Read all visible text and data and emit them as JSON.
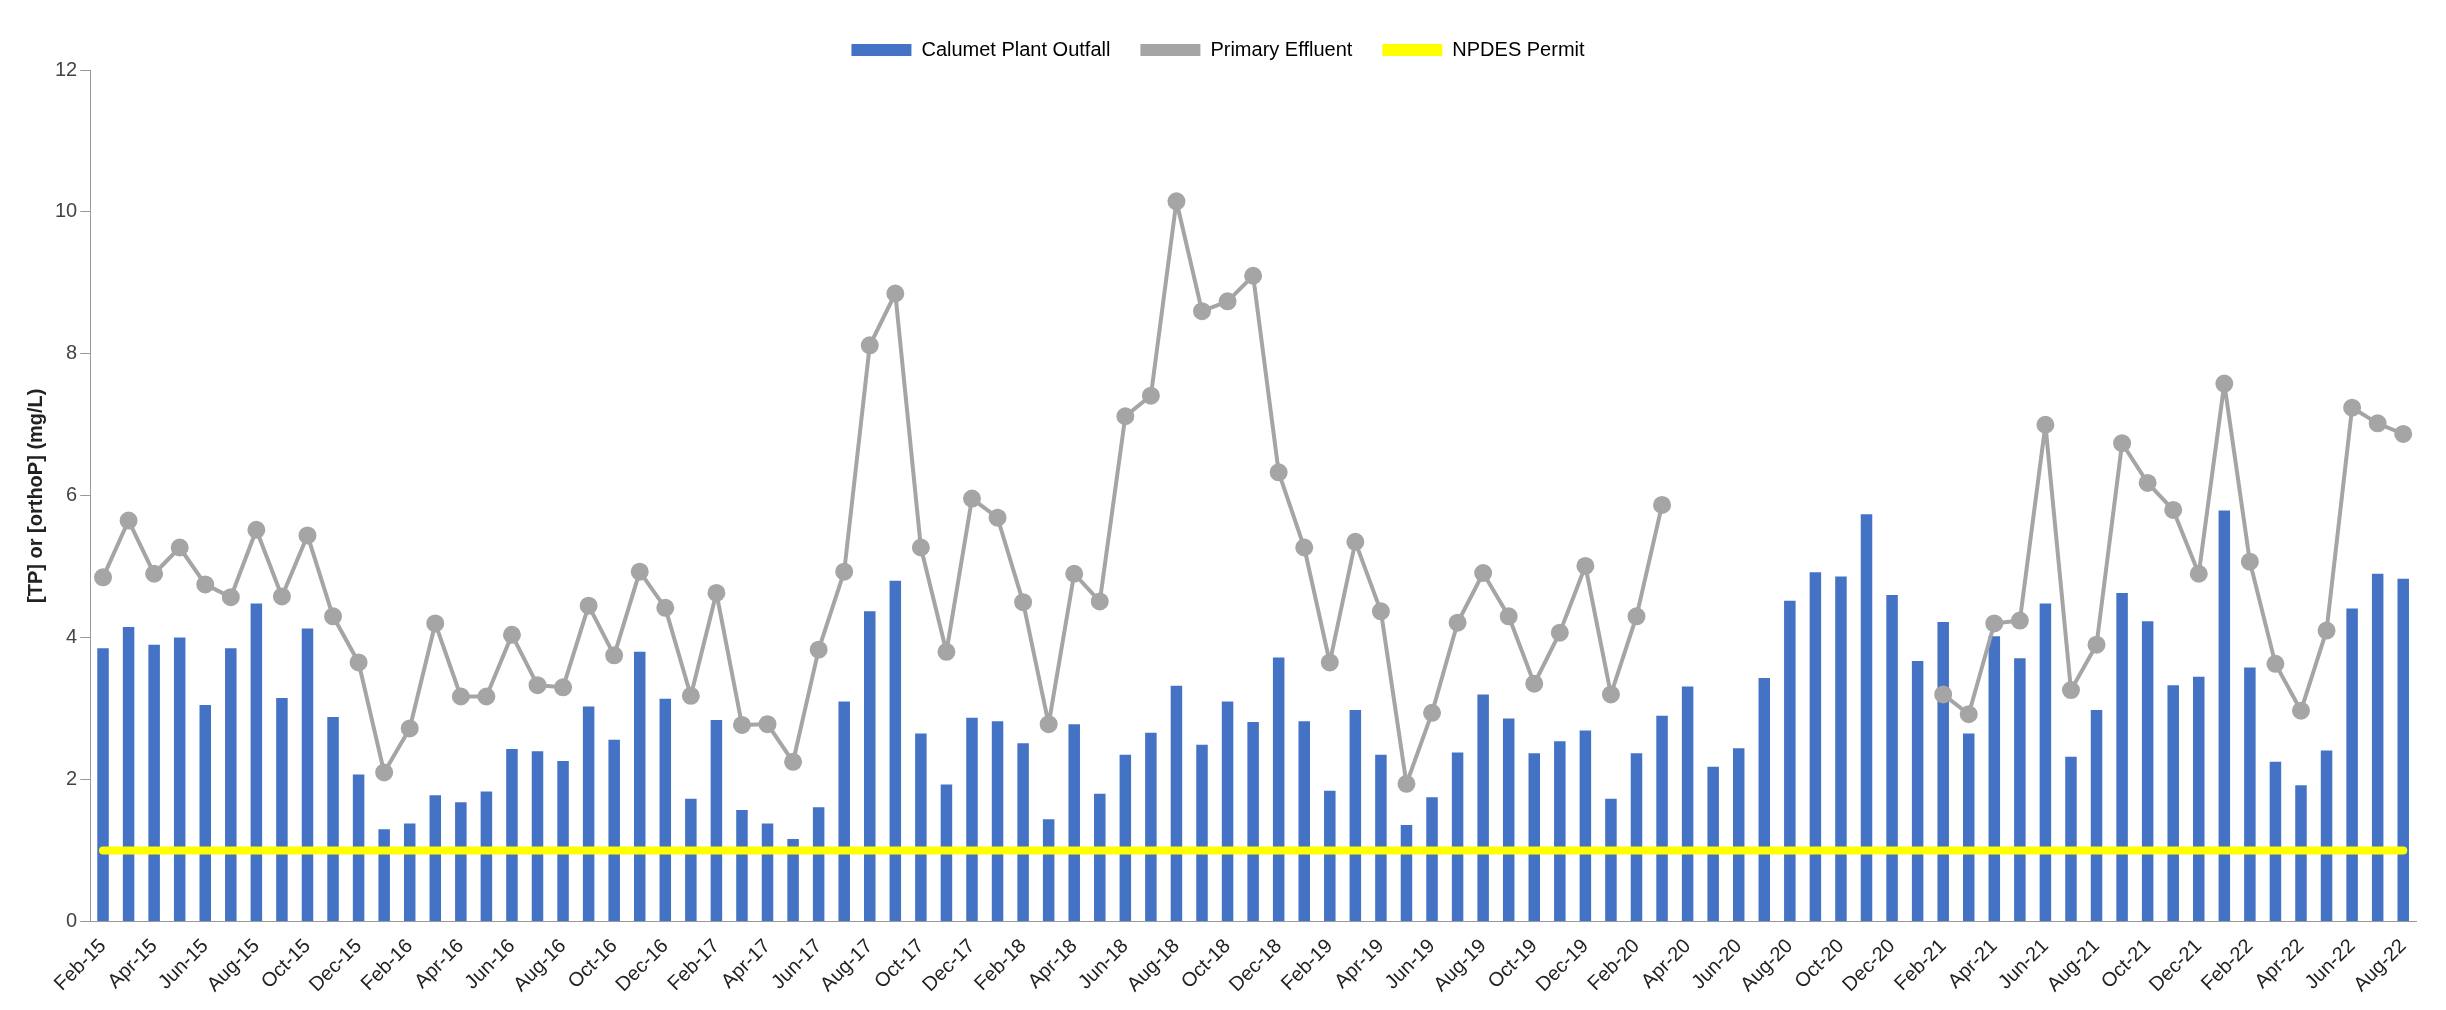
{
  "chart_data": {
    "type": "bar",
    "ylabel": "[TP] or [orthoP] (mg/L)",
    "legend": "top",
    "grid": false,
    "ylim": [
      0,
      12
    ],
    "yticks": [
      0,
      2,
      4,
      6,
      8,
      10,
      12
    ],
    "categories": [
      "Feb-15",
      null,
      "Apr-15",
      null,
      "Jun-15",
      null,
      "Aug-15",
      null,
      "Oct-15",
      null,
      "Dec-15",
      null,
      "Feb-16",
      null,
      "Apr-16",
      null,
      "Jun-16",
      null,
      "Aug-16",
      null,
      "Oct-16",
      null,
      "Dec-16",
      null,
      "Feb-17",
      null,
      "Apr-17",
      null,
      "Jun-17",
      null,
      "Aug-17",
      null,
      "Oct-17",
      null,
      "Dec-17",
      null,
      "Feb-18",
      null,
      "Apr-18",
      null,
      "Jun-18",
      null,
      "Aug-18",
      null,
      "Oct-18",
      null,
      "Dec-18",
      null,
      "Feb-19",
      null,
      "Apr-19",
      null,
      "Jun-19",
      null,
      "Aug-19",
      null,
      "Oct-19",
      null,
      "Dec-19",
      null,
      "Feb-20",
      null,
      "Apr-20",
      null,
      "Jun-20",
      null,
      "Aug-20",
      null,
      "Oct-20",
      null,
      "Dec-20",
      null,
      "Feb-21",
      null,
      "Apr-21",
      null,
      "Jun-21",
      null,
      "Aug-21",
      null,
      "Oct-21",
      null,
      "Dec-21",
      null,
      "Feb-22",
      null,
      "Apr-22",
      null,
      "Jun-22",
      null,
      "Aug-22"
    ],
    "series": [
      {
        "name": "Calumet Plant Outfall",
        "color": "#4472c4",
        "values": [
          3.85,
          4.15,
          3.9,
          4.0,
          3.05,
          3.85,
          4.48,
          3.15,
          4.13,
          2.88,
          2.07,
          1.3,
          1.38,
          1.78,
          1.68,
          1.83,
          2.43,
          2.4,
          2.26,
          3.03,
          2.56,
          3.8,
          3.14,
          1.73,
          2.84,
          1.57,
          1.38,
          1.16,
          1.61,
          3.1,
          4.37,
          4.8,
          2.65,
          1.93,
          2.87,
          2.82,
          2.51,
          1.44,
          2.78,
          1.8,
          2.35,
          2.66,
          3.32,
          2.49,
          3.1,
          2.81,
          3.72,
          2.82,
          1.84,
          2.98,
          2.35,
          1.36,
          1.75,
          2.38,
          3.2,
          2.86,
          2.37,
          2.54,
          2.69,
          1.73,
          2.37,
          2.9,
          3.31,
          2.18,
          2.44,
          3.43,
          4.52,
          4.92,
          4.86,
          5.74,
          4.6,
          3.67,
          4.22,
          2.65,
          4.02,
          3.71,
          4.48,
          2.32,
          2.98,
          4.63,
          4.23,
          3.33,
          3.45,
          5.79,
          3.58,
          2.25,
          1.92,
          2.41,
          4.41,
          4.9,
          4.83
        ]
      },
      {
        "name": "Primary Effluent",
        "type": "line",
        "color": "#a5a5a5",
        "marker": "circle",
        "values": [
          4.85,
          5.65,
          4.9,
          5.27,
          4.75,
          4.57,
          5.52,
          4.58,
          5.44,
          4.3,
          3.65,
          2.1,
          2.72,
          4.2,
          3.17,
          3.17,
          4.04,
          3.33,
          3.3,
          4.45,
          3.75,
          4.93,
          4.42,
          3.18,
          4.63,
          2.77,
          2.78,
          2.25,
          3.83,
          4.93,
          8.12,
          8.85,
          5.27,
          3.8,
          5.96,
          5.69,
          4.5,
          2.78,
          4.9,
          4.51,
          7.12,
          7.41,
          10.15,
          8.6,
          8.74,
          9.1,
          6.33,
          5.27,
          3.65,
          5.35,
          4.37,
          1.94,
          2.94,
          4.21,
          4.91,
          4.3,
          3.35,
          4.07,
          5.01,
          3.2,
          4.3,
          5.87,
          null,
          null,
          null,
          null,
          null,
          null,
          null,
          null,
          null,
          null,
          3.2,
          2.92,
          4.2,
          4.24,
          7.0,
          3.26,
          3.9,
          6.74,
          6.18,
          5.8,
          4.9,
          7.58,
          5.07,
          3.63,
          2.97,
          4.1,
          7.24,
          7.02,
          6.87
        ]
      },
      {
        "name": "NPDES Permit",
        "type": "line",
        "color": "#ffff00",
        "marker": "none",
        "values": [
          1,
          1,
          1,
          1,
          1,
          1,
          1,
          1,
          1,
          1,
          1,
          1,
          1,
          1,
          1,
          1,
          1,
          1,
          1,
          1,
          1,
          1,
          1,
          1,
          1,
          1,
          1,
          1,
          1,
          1,
          1,
          1,
          1,
          1,
          1,
          1,
          1,
          1,
          1,
          1,
          1,
          1,
          1,
          1,
          1,
          1,
          1,
          1,
          1,
          1,
          1,
          1,
          1,
          1,
          1,
          1,
          1,
          1,
          1,
          1,
          1,
          1,
          1,
          1,
          1,
          1,
          1,
          1,
          1,
          1,
          1,
          1,
          1,
          1,
          1,
          1,
          1,
          1,
          1,
          1,
          1,
          1,
          1,
          1,
          1,
          1,
          1,
          1,
          1,
          1,
          1
        ]
      }
    ]
  }
}
